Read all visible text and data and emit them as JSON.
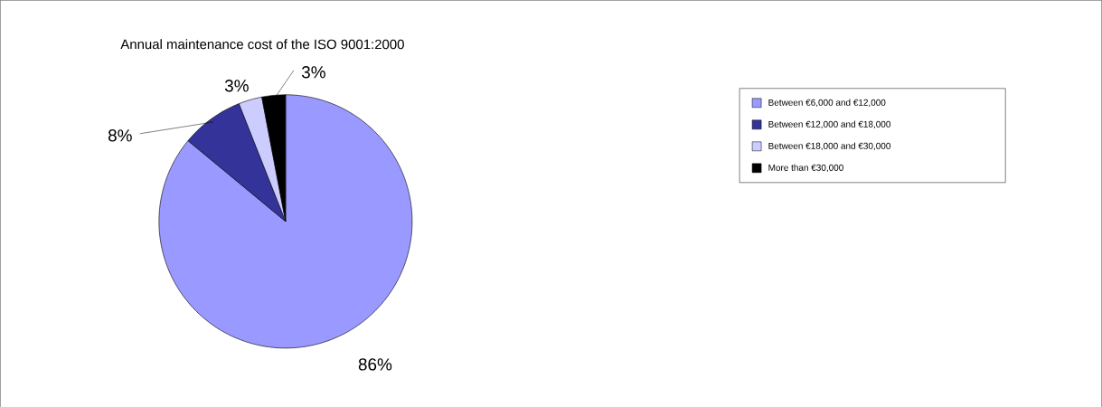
{
  "chart_data": {
    "type": "pie",
    "title": "Annual maintenance cost of the ISO 9001:2000",
    "categories": [
      "Between €6,000 and €12,000",
      "Between €12,000 and €18,000",
      "Between €18,000 and €30,000",
      "More than €30,000"
    ],
    "values": [
      86,
      8,
      3,
      3
    ],
    "value_labels": [
      "86%",
      "8%",
      "3%",
      "3%"
    ],
    "colors": [
      "#9999ff",
      "#333399",
      "#ccccff",
      "#000000"
    ],
    "legend": "right"
  }
}
